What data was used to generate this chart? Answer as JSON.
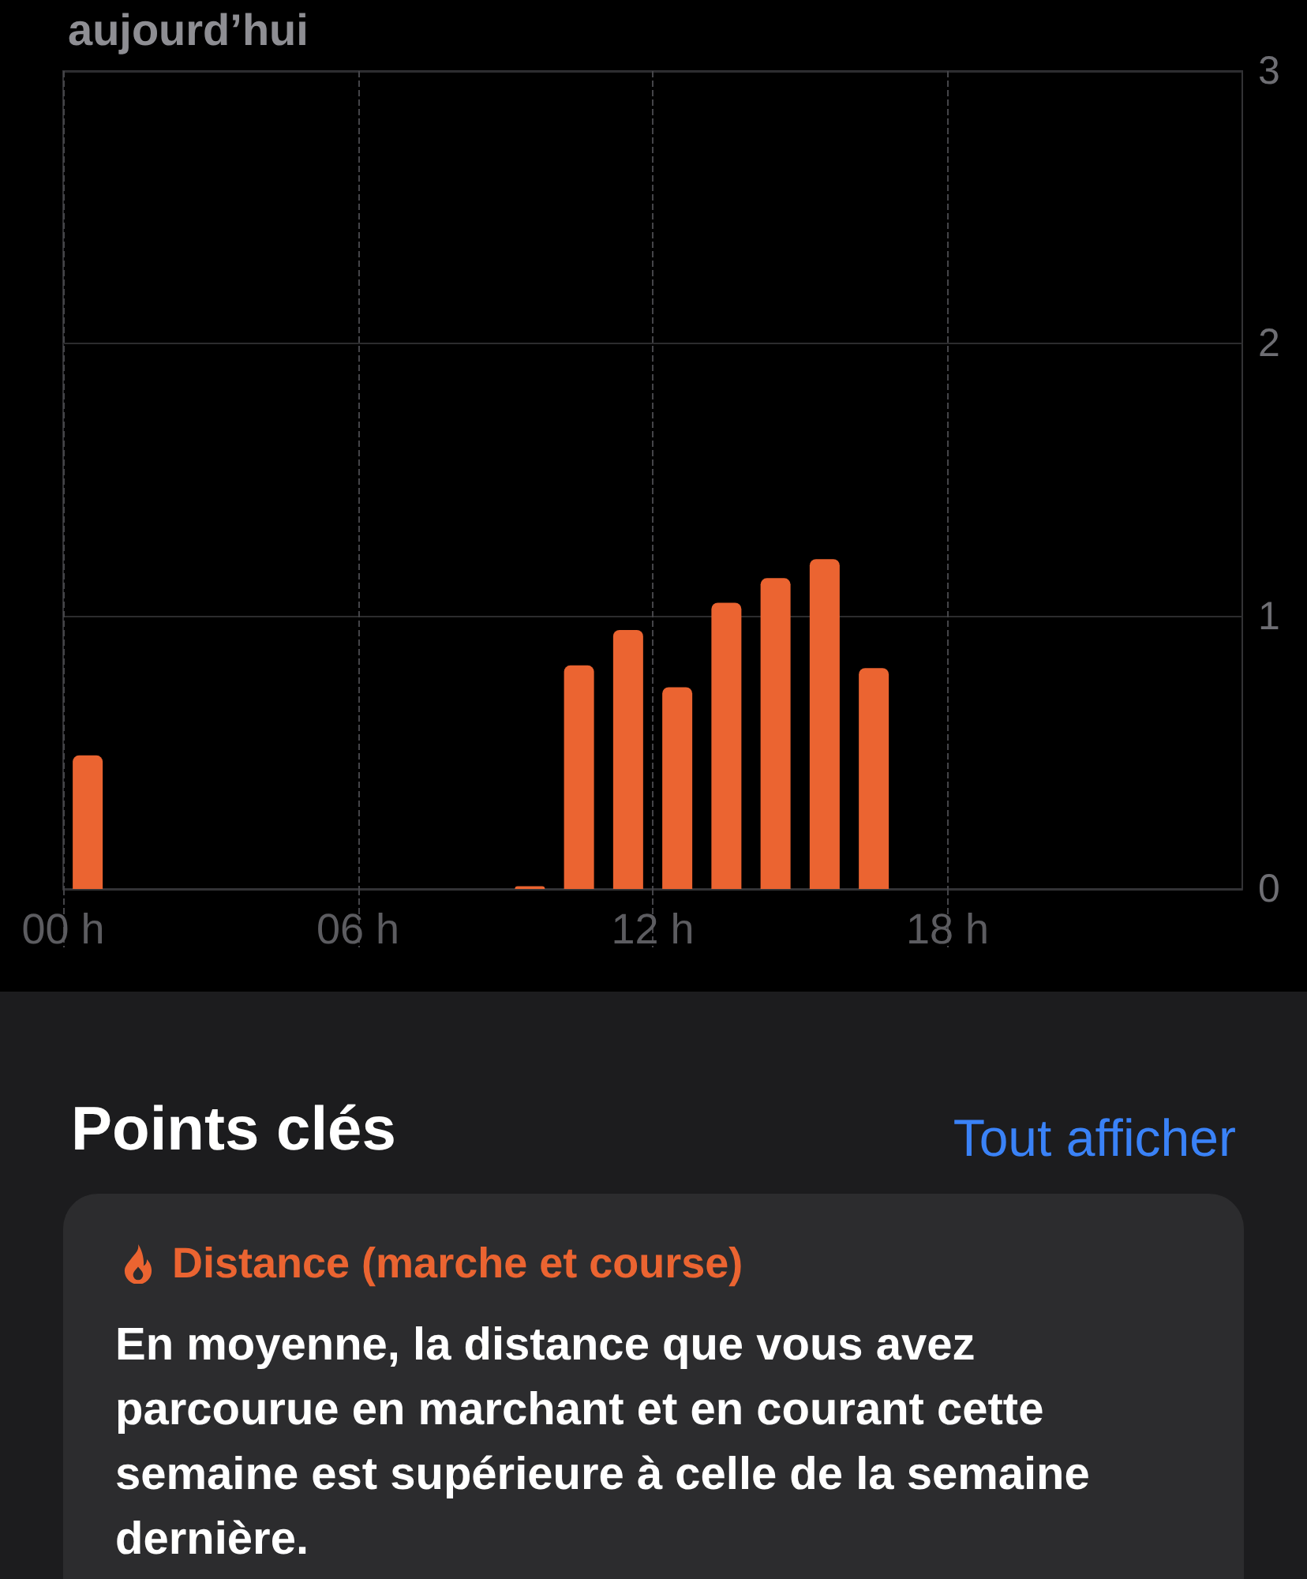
{
  "chart_data": [
    {
      "type": "bar",
      "title": "aujourd’hui",
      "x": [
        0.5,
        9.5,
        10.5,
        11.5,
        12.5,
        13.5,
        14.5,
        15.5,
        16.5
      ],
      "values": [
        0.49,
        0.01,
        0.82,
        0.95,
        0.74,
        1.05,
        1.14,
        1.21,
        0.81
      ],
      "color": "#eb6431",
      "xlim": [
        0,
        24
      ],
      "xticks": [
        {
          "value": 0,
          "label": "00 h"
        },
        {
          "value": 6,
          "label": "06 h"
        },
        {
          "value": 12,
          "label": "12 h"
        },
        {
          "value": 18,
          "label": "18 h"
        }
      ],
      "ylim": [
        0,
        3
      ],
      "yticks": [
        0,
        1,
        2,
        3
      ],
      "grid": true
    },
    {
      "type": "other",
      "title": "Points clés",
      "annotations": [
        "Tout afficher",
        "Distance (marche et course)",
        "En moyenne, la distance que vous avez parcourue en marchant et en courant cette semaine est supérieure à celle de la semaine dernière."
      ]
    }
  ]
}
